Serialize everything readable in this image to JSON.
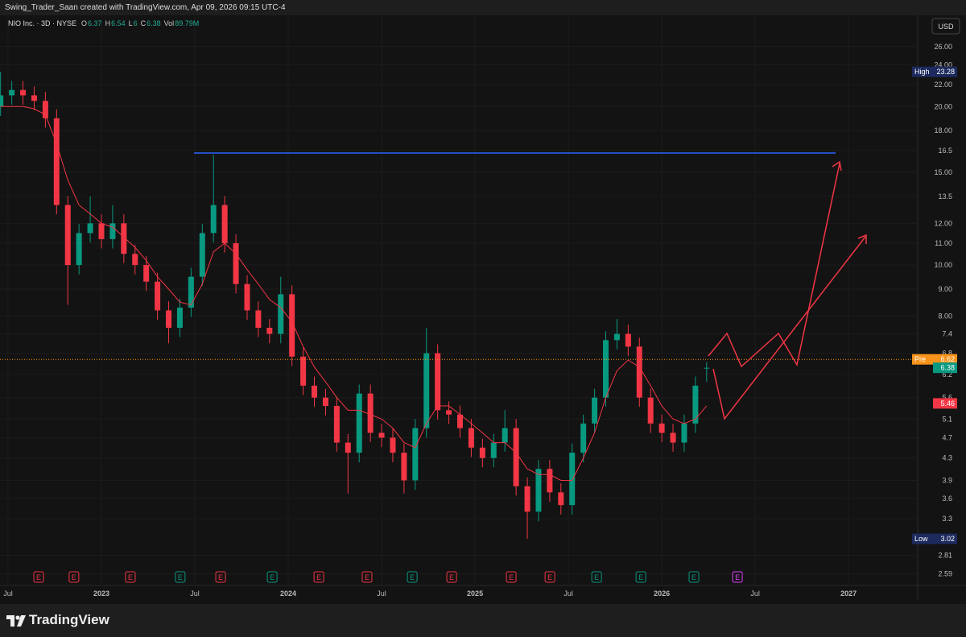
{
  "header": {
    "author_line": "Swing_Trader_Saan created with TradingView.com, Apr 09, 2026 09:15 UTC-4"
  },
  "currency": "USD",
  "footer": {
    "brand": "TradingView"
  },
  "chart_data": {
    "type": "candlestick",
    "title": "NIO Inc. · 3D · NYSE",
    "ohlc_labels": [
      "O",
      "H",
      "L",
      "C"
    ],
    "volume_label": "Vol",
    "volume_value": "89.79M",
    "log_scale": true,
    "up_color": "#089981",
    "down_color": "#f23645",
    "ma_color": "#f23645",
    "x": [
      2022.46,
      2022.52,
      2022.58,
      2022.64,
      2022.7,
      2022.76,
      2022.82,
      2022.88,
      2022.94,
      2023,
      2023.06,
      2023.12,
      2023.18,
      2023.24,
      2023.3,
      2023.36,
      2023.42,
      2023.48,
      2023.54,
      2023.6,
      2023.66,
      2023.72,
      2023.78,
      2023.84,
      2023.9,
      2023.96,
      2024.02,
      2024.08,
      2024.14,
      2024.2,
      2024.26,
      2024.32,
      2024.38,
      2024.44,
      2024.5,
      2024.56,
      2024.62,
      2024.68,
      2024.74,
      2024.8,
      2024.86,
      2024.92,
      2024.98,
      2025.04,
      2025.1,
      2025.16,
      2025.22,
      2025.28,
      2025.34,
      2025.4,
      2025.46,
      2025.52,
      2025.58,
      2025.64,
      2025.7,
      2025.76,
      2025.82,
      2025.88,
      2025.94,
      2026,
      2026.06,
      2026.12,
      2026.18,
      2026.24
    ],
    "open": [
      20,
      21,
      21.5,
      21,
      20.5,
      19,
      13,
      10,
      11.5,
      12,
      11.2,
      12,
      10.5,
      10,
      9.3,
      8.2,
      7.6,
      8.3,
      9.5,
      11.5,
      13,
      11,
      9.2,
      8.2,
      7.6,
      7.4,
      8.8,
      6.7,
      5.9,
      5.6,
      5.4,
      4.6,
      4.4,
      5.7,
      4.8,
      4.7,
      4.4,
      3.9,
      4.9,
      6.8,
      5.3,
      5.2,
      4.9,
      4.5,
      4.3,
      4.6,
      4.9,
      3.8,
      3.4,
      4.1,
      3.7,
      3.5,
      4.4,
      5,
      5.6,
      7.2,
      7.4,
      7,
      5.6,
      5,
      4.8,
      4.6,
      5,
      6.37
    ],
    "high": [
      23.28,
      22.36,
      22.36,
      21.84,
      21.32,
      19.76,
      13.52,
      11.96,
      13.5,
      12.48,
      13,
      12.48,
      10.92,
      10.4,
      9.67,
      8.53,
      8.63,
      9.88,
      11.96,
      16.2,
      13.52,
      11.44,
      9.57,
      8.53,
      7.9,
      9.5,
      9.15,
      6.97,
      6.14,
      5.82,
      5.62,
      4.78,
      5.93,
      5.93,
      4.99,
      4.89,
      4.58,
      5.1,
      7.6,
      7.07,
      5.51,
      5.41,
      5.1,
      4.68,
      4.78,
      5.3,
      5.1,
      3.95,
      4.26,
      4.26,
      3.85,
      4.58,
      5.2,
      5.82,
      7.49,
      7.9,
      7.7,
      7.28,
      5.82,
      5.2,
      4.99,
      5.2,
      6.14,
      6.54
    ],
    "low": [
      19.2,
      20.16,
      20.16,
      19.68,
      18.24,
      12.48,
      8.4,
      9.6,
      11.04,
      10.75,
      10.75,
      10.08,
      9.6,
      8.93,
      7.87,
      7.1,
      7.3,
      7.97,
      9.12,
      11.04,
      10.56,
      8.83,
      7.87,
      7.3,
      7.1,
      7.1,
      6.43,
      5.66,
      5.38,
      5.18,
      4.42,
      3.68,
      4.22,
      4.61,
      4.51,
      4.22,
      3.68,
      3.74,
      4.7,
      5.09,
      4.99,
      4.7,
      4.32,
      4.13,
      4.13,
      4.42,
      3.65,
      3.02,
      3.26,
      3.55,
      3.36,
      3.36,
      4.22,
      4.8,
      5.38,
      6.91,
      6.72,
      5.38,
      4.8,
      4.61,
      4.42,
      4.42,
      4.8,
      6
    ],
    "close": [
      21,
      21.5,
      21,
      20.5,
      19,
      13,
      10,
      11.5,
      12,
      11.2,
      12,
      10.5,
      10,
      9.3,
      8.2,
      7.6,
      8.3,
      9.5,
      11.5,
      13,
      11,
      9.2,
      8.2,
      7.6,
      7.4,
      8.8,
      6.7,
      5.9,
      5.6,
      5.4,
      4.6,
      4.4,
      5.7,
      4.8,
      4.7,
      4.4,
      3.9,
      4.9,
      6.8,
      5.3,
      5.2,
      4.9,
      4.5,
      4.3,
      4.6,
      4.9,
      3.8,
      3.4,
      4.1,
      3.7,
      3.5,
      4.4,
      5,
      5.6,
      7.2,
      7.4,
      7,
      5.6,
      5,
      4.8,
      4.6,
      5,
      5.9,
      6.38
    ],
    "ma": [
      20,
      20,
      20,
      19.8,
      19.3,
      17,
      14.5,
      13,
      12.5,
      12,
      11.8,
      11.3,
      10.8,
      10.2,
      9.5,
      9,
      8.5,
      8.4,
      9.2,
      10.6,
      11,
      10.5,
      9.8,
      9.2,
      8.6,
      8.3,
      7.8,
      7,
      6.4,
      6,
      5.6,
      5.3,
      5.3,
      5.2,
      5.1,
      4.9,
      4.6,
      4.5,
      5,
      5.4,
      5.4,
      5.2,
      5,
      4.8,
      4.6,
      4.6,
      4.4,
      4.1,
      4,
      4,
      3.9,
      3.9,
      4.3,
      4.8,
      5.6,
      6.3,
      6.6,
      6.4,
      5.9,
      5.4,
      5.1,
      5,
      5.1,
      5.4
    ],
    "xlim": [
      2022.457,
      2027.37
    ],
    "xticks": [
      {
        "value": 2022.5,
        "label": "Jul"
      },
      2023,
      {
        "value": 2023.5,
        "label": "Jul"
      },
      2024,
      {
        "value": 2024.5,
        "label": "Jul"
      },
      2025,
      {
        "value": 2025.5,
        "label": "Jul"
      },
      2026,
      {
        "value": 2026.5,
        "label": "Jul"
      },
      2027
    ],
    "ylim": [
      2.48,
      29.7
    ],
    "yticks": [
      {
        "value": 26,
        "label": "26.00"
      },
      {
        "value": 24,
        "label": "24.00"
      },
      {
        "value": 22,
        "label": "22.00"
      },
      {
        "value": 20,
        "label": "20.00"
      },
      {
        "value": 18,
        "label": "18.00"
      },
      16.5,
      {
        "value": 15,
        "label": "15.00"
      },
      13.5,
      {
        "value": 12,
        "label": "12.00"
      },
      {
        "value": 11,
        "label": "11.00"
      },
      {
        "value": 10,
        "label": "10.00"
      },
      {
        "value": 9,
        "label": "9.00"
      },
      {
        "value": 8,
        "label": "8.00"
      },
      7.4,
      6.8,
      6.2,
      5.6,
      5.1,
      4.7,
      4.3,
      3.9,
      3.6,
      3.3,
      2.81,
      2.59
    ],
    "price_labels": [
      {
        "label": "High",
        "value": 23.28,
        "color": "#1c2a5e"
      },
      {
        "label": "Pre",
        "value": 6.62,
        "color": "#f7931a"
      },
      {
        "value": 6.38,
        "color": "#089981"
      },
      {
        "value": 5.46,
        "color": "#f23645"
      },
      {
        "label": "Low",
        "value": 3.02,
        "color": "#1c2a5e"
      }
    ],
    "earnings": [
      {
        "t": 2022.664,
        "label": "E",
        "color": "#f23645"
      },
      {
        "t": 2022.853,
        "label": "E",
        "color": "#f23645"
      },
      {
        "t": 2023.155,
        "label": "E",
        "color": "#f23645"
      },
      {
        "t": 2023.422,
        "label": "E",
        "color": "#089981"
      },
      {
        "t": 2023.638,
        "label": "E",
        "color": "#f23645"
      },
      {
        "t": 2023.914,
        "label": "E",
        "color": "#089981"
      },
      {
        "t": 2024.164,
        "label": "E",
        "color": "#f23645"
      },
      {
        "t": 2024.422,
        "label": "E",
        "color": "#f23645"
      },
      {
        "t": 2024.664,
        "label": "E",
        "color": "#089981"
      },
      {
        "t": 2024.875,
        "label": "E",
        "color": "#f23645"
      },
      {
        "t": 2025.194,
        "label": "E",
        "color": "#f23645"
      },
      {
        "t": 2025.401,
        "label": "E",
        "color": "#f23645"
      },
      {
        "t": 2025.651,
        "label": "E",
        "color": "#089981"
      },
      {
        "t": 2025.888,
        "label": "E",
        "color": "#089981"
      },
      {
        "t": 2026.172,
        "label": "E",
        "color": "#089981"
      },
      {
        "t": 2026.405,
        "label": "E",
        "color": "#e040fb"
      }
    ]
  }
}
